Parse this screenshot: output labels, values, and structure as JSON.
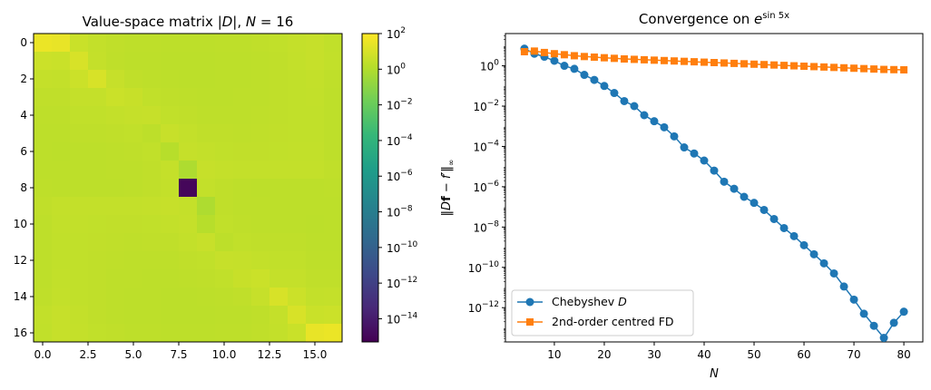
{
  "chart_data": [
    {
      "type": "heatmap",
      "title_main": "Value-space matrix |D|, N = 16",
      "title_parts": {
        "prefix": "Value-space matrix ",
        "abs_D": "|D|",
        "comma": ", ",
        "N": "N",
        "eq": " = ",
        "num": "16"
      },
      "n": 17,
      "x_ticks": [
        "0.0",
        "2.5",
        "5.0",
        "7.5",
        "10.0",
        "12.5",
        "15.0"
      ],
      "x_tick_values": [
        0,
        2.5,
        5,
        7.5,
        10,
        12.5,
        15
      ],
      "y_ticks": [
        "0",
        "2",
        "4",
        "6",
        "8",
        "10",
        "12",
        "14",
        "16"
      ],
      "y_tick_values": [
        0,
        2,
        4,
        6,
        8,
        10,
        12,
        14,
        16
      ],
      "colorbar": {
        "colormap": "viridis",
        "scale": "log",
        "vmin_exp": -15.3,
        "vmax_exp": 2.0,
        "ticks": [
          {
            "base": "10",
            "exp": "2",
            "value": 2
          },
          {
            "base": "10",
            "exp": "0",
            "value": 0
          },
          {
            "base": "10",
            "exp": "−2",
            "value": -2
          },
          {
            "base": "10",
            "exp": "−4",
            "value": -4
          },
          {
            "base": "10",
            "exp": "−6",
            "value": -6
          },
          {
            "base": "10",
            "exp": "−8",
            "value": -8
          },
          {
            "base": "10",
            "exp": "−10",
            "value": -10
          },
          {
            "base": "10",
            "exp": "−12",
            "value": -12
          },
          {
            "base": "10",
            "exp": "−14",
            "value": -14
          }
        ]
      },
      "values_log10": [
        [
          1.52,
          1.44,
          0.62,
          0.45,
          0.37,
          0.33,
          0.31,
          0.3,
          0.3,
          0.3,
          0.31,
          0.33,
          0.36,
          0.4,
          0.47,
          0.54,
          0.41
        ],
        [
          0.66,
          0.62,
          0.98,
          0.49,
          0.35,
          0.3,
          0.28,
          0.27,
          0.27,
          0.27,
          0.28,
          0.3,
          0.33,
          0.38,
          0.44,
          0.53,
          0.43
        ],
        [
          0.47,
          0.46,
          0.67,
          0.99,
          0.52,
          0.37,
          0.31,
          0.28,
          0.27,
          0.27,
          0.28,
          0.3,
          0.32,
          0.36,
          0.4,
          0.44,
          0.35
        ],
        [
          0.38,
          0.36,
          0.49,
          0.48,
          0.65,
          0.56,
          0.4,
          0.34,
          0.31,
          0.3,
          0.3,
          0.31,
          0.33,
          0.37,
          0.4,
          0.42,
          0.32
        ],
        [
          0.32,
          0.31,
          0.4,
          0.4,
          0.46,
          0.5,
          0.53,
          0.41,
          0.36,
          0.33,
          0.32,
          0.33,
          0.34,
          0.37,
          0.4,
          0.41,
          0.32
        ],
        [
          0.3,
          0.28,
          0.34,
          0.34,
          0.38,
          0.41,
          0.29,
          0.55,
          0.44,
          0.38,
          0.36,
          0.35,
          0.36,
          0.39,
          0.4,
          0.41,
          0.32
        ],
        [
          0.29,
          0.27,
          0.3,
          0.3,
          0.33,
          0.35,
          0.41,
          0.14,
          0.51,
          0.45,
          0.4,
          0.39,
          0.39,
          0.41,
          0.42,
          0.43,
          0.33
        ],
        [
          0.3,
          0.28,
          0.3,
          0.29,
          0.31,
          0.33,
          0.38,
          0.47,
          -0.12,
          0.54,
          0.48,
          0.45,
          0.44,
          0.45,
          0.46,
          0.46,
          0.37
        ],
        [
          0.32,
          0.29,
          0.3,
          0.29,
          0.3,
          0.32,
          0.36,
          0.44,
          -15.0,
          0.44,
          0.36,
          0.32,
          0.3,
          0.29,
          0.3,
          0.29,
          0.32
        ],
        [
          0.37,
          0.46,
          0.46,
          0.45,
          0.44,
          0.45,
          0.48,
          0.54,
          0.47,
          -0.12,
          0.38,
          0.33,
          0.31,
          0.29,
          0.3,
          0.28,
          0.3
        ],
        [
          0.33,
          0.43,
          0.42,
          0.41,
          0.39,
          0.39,
          0.4,
          0.45,
          0.51,
          0.14,
          0.41,
          0.35,
          0.33,
          0.3,
          0.3,
          0.27,
          0.29
        ],
        [
          0.32,
          0.41,
          0.4,
          0.39,
          0.36,
          0.35,
          0.36,
          0.38,
          0.44,
          0.55,
          0.29,
          0.41,
          0.38,
          0.34,
          0.34,
          0.28,
          0.3
        ],
        [
          0.32,
          0.41,
          0.4,
          0.37,
          0.34,
          0.33,
          0.32,
          0.33,
          0.36,
          0.41,
          0.53,
          0.5,
          0.46,
          0.4,
          0.4,
          0.31,
          0.32
        ],
        [
          0.32,
          0.42,
          0.4,
          0.37,
          0.33,
          0.31,
          0.3,
          0.3,
          0.31,
          0.34,
          0.4,
          0.56,
          0.65,
          0.48,
          0.49,
          0.36,
          0.38
        ],
        [
          0.35,
          0.44,
          0.4,
          0.36,
          0.32,
          0.3,
          0.28,
          0.27,
          0.27,
          0.28,
          0.31,
          0.37,
          0.52,
          0.99,
          0.67,
          0.46,
          0.47
        ],
        [
          0.43,
          0.53,
          0.44,
          0.38,
          0.33,
          0.3,
          0.28,
          0.27,
          0.27,
          0.27,
          0.28,
          0.3,
          0.35,
          0.49,
          0.98,
          0.62,
          0.66
        ],
        [
          0.41,
          0.54,
          0.47,
          0.4,
          0.36,
          0.33,
          0.31,
          0.3,
          0.3,
          0.3,
          0.31,
          0.33,
          0.37,
          0.45,
          0.62,
          1.44,
          1.52
        ]
      ]
    },
    {
      "type": "line",
      "title_main": "Convergence on e^{sin 5x}",
      "title_parts": {
        "prefix": "Convergence on ",
        "base": "e",
        "sup": "sin 5x"
      },
      "xlabel": "N",
      "ylabel": "‖Df − f′‖∞",
      "ylabel_parts": {
        "open": "‖",
        "D": "D",
        "f_bold": "f",
        "minus": " − ",
        "fprime": "f′",
        "close": "‖",
        "sub": "∞"
      },
      "yscale": "log",
      "xlim": [
        0.2,
        83.8
      ],
      "ylim_exp": [
        -13.7,
        1.6
      ],
      "x_ticks": [
        "10",
        "20",
        "30",
        "40",
        "50",
        "60",
        "70",
        "80"
      ],
      "x_tick_values": [
        10,
        20,
        30,
        40,
        50,
        60,
        70,
        80
      ],
      "y_ticks": [
        {
          "base": "10",
          "exp": "0",
          "value": 0
        },
        {
          "base": "10",
          "exp": "−2",
          "value": -2
        },
        {
          "base": "10",
          "exp": "−4",
          "value": -4
        },
        {
          "base": "10",
          "exp": "−6",
          "value": -6
        },
        {
          "base": "10",
          "exp": "−8",
          "value": -8
        },
        {
          "base": "10",
          "exp": "−10",
          "value": -10
        },
        {
          "base": "10",
          "exp": "−12",
          "value": -12
        }
      ],
      "legend_position": "lower-left",
      "series": [
        {
          "name": "Chebyshev D",
          "name_parts": {
            "text": "Chebyshev ",
            "italic": "D"
          },
          "color": "#1f77b4",
          "marker": "circle",
          "x": [
            4,
            6,
            8,
            10,
            12,
            14,
            16,
            18,
            20,
            22,
            24,
            26,
            28,
            30,
            32,
            34,
            36,
            38,
            40,
            42,
            44,
            46,
            48,
            50,
            52,
            54,
            56,
            58,
            60,
            62,
            64,
            66,
            68,
            70,
            72,
            74,
            76,
            78,
            80
          ],
          "y_log10": [
            0.85,
            0.6,
            0.45,
            0.25,
            0.0,
            -0.15,
            -0.45,
            -0.7,
            -1.0,
            -1.35,
            -1.75,
            -2.0,
            -2.45,
            -2.75,
            -3.05,
            -3.5,
            -4.05,
            -4.35,
            -4.7,
            -5.2,
            -5.75,
            -6.1,
            -6.5,
            -6.8,
            -7.15,
            -7.6,
            -8.05,
            -8.45,
            -8.9,
            -9.35,
            -9.8,
            -10.3,
            -10.95,
            -11.6,
            -12.3,
            -12.9,
            -13.5,
            -12.75,
            -12.2
          ]
        },
        {
          "name": "2nd-order centred FD",
          "color": "#ff7f0e",
          "marker": "square",
          "x": [
            4,
            6,
            8,
            10,
            12,
            14,
            16,
            18,
            20,
            22,
            24,
            26,
            28,
            30,
            32,
            34,
            36,
            38,
            40,
            42,
            44,
            46,
            48,
            50,
            52,
            54,
            56,
            58,
            60,
            62,
            64,
            66,
            68,
            70,
            72,
            74,
            76,
            78,
            80
          ],
          "y_log10": [
            0.7,
            0.73,
            0.66,
            0.6,
            0.55,
            0.5,
            0.46,
            0.43,
            0.4,
            0.37,
            0.34,
            0.32,
            0.3,
            0.28,
            0.26,
            0.24,
            0.22,
            0.2,
            0.18,
            0.16,
            0.14,
            0.12,
            0.1,
            0.08,
            0.06,
            0.04,
            0.02,
            0.0,
            -0.02,
            -0.04,
            -0.06,
            -0.08,
            -0.1,
            -0.12,
            -0.14,
            -0.16,
            -0.18,
            -0.19,
            -0.2
          ]
        }
      ]
    }
  ]
}
